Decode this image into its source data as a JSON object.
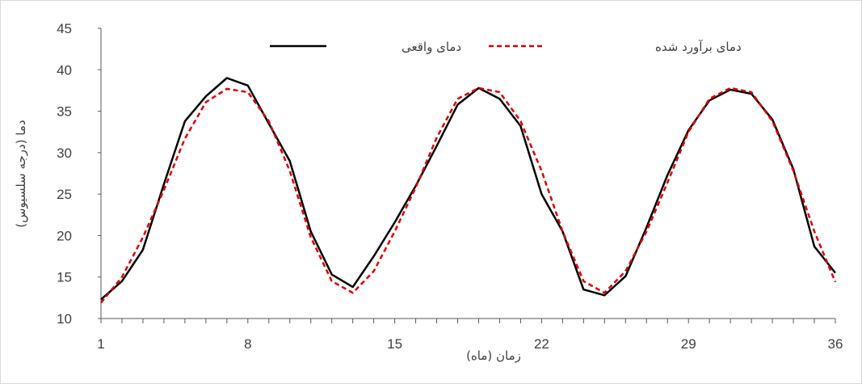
{
  "chart_data": {
    "type": "line",
    "title": "",
    "xlabel": "زمان (ماه)",
    "ylabel": "دما (درجه سلسیوس)",
    "ylim": [
      10,
      45
    ],
    "xlim": [
      1,
      36
    ],
    "yticks": [
      10,
      15,
      20,
      25,
      30,
      35,
      40,
      45
    ],
    "xticks": [
      1,
      8,
      15,
      22,
      29,
      36
    ],
    "grid": false,
    "legend_position": "top",
    "x": [
      1,
      2,
      3,
      4,
      5,
      6,
      7,
      8,
      9,
      10,
      11,
      12,
      13,
      14,
      15,
      16,
      17,
      18,
      19,
      20,
      21,
      22,
      23,
      24,
      25,
      26,
      27,
      28,
      29,
      30,
      31,
      32,
      33,
      34,
      35,
      36
    ],
    "series": [
      {
        "name": "دمای واقعی",
        "color": "#000000",
        "style": "solid",
        "values": [
          12.3,
          14.5,
          18.3,
          26.2,
          33.8,
          36.8,
          39.0,
          38.1,
          33.5,
          29.0,
          20.5,
          15.3,
          13.8,
          17.5,
          21.6,
          26.0,
          30.8,
          35.8,
          37.8,
          36.5,
          33.2,
          25.0,
          20.5,
          13.5,
          12.8,
          15.1,
          21.0,
          27.3,
          32.7,
          36.3,
          37.6,
          37.1,
          34.0,
          28.0,
          18.7,
          15.5
        ]
      },
      {
        "name": "دمای برآورد شده",
        "color": "#e00000",
        "style": "dashed",
        "values": [
          11.9,
          15.0,
          19.8,
          25.5,
          31.7,
          36.1,
          37.7,
          37.3,
          33.8,
          27.8,
          19.8,
          14.5,
          13.1,
          15.7,
          20.5,
          25.8,
          31.8,
          36.5,
          37.8,
          37.3,
          33.8,
          27.8,
          20.5,
          14.5,
          13.1,
          15.7,
          20.5,
          26.4,
          32.5,
          36.5,
          37.8,
          37.3,
          33.8,
          27.8,
          20.5,
          14.4
        ]
      }
    ]
  }
}
